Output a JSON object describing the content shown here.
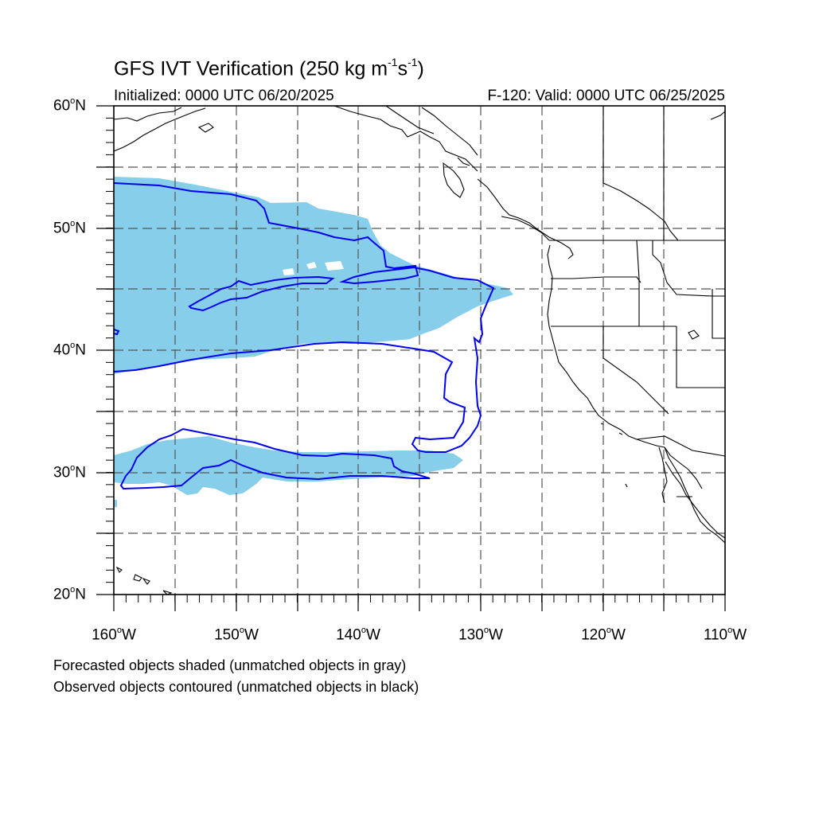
{
  "title": {
    "main": "GFS IVT Verification (250 kg m",
    "exp1": "-1",
    "mid": "s",
    "exp2": "-1",
    "end": ")"
  },
  "initialized": "Initialized: 0000 UTC 06/20/2025",
  "valid": "F-120: Valid: 0000 UTC 06/25/2025",
  "lat_labels": [
    {
      "value": "60",
      "unit": "o",
      "dir": "N"
    },
    {
      "value": "50",
      "unit": "o",
      "dir": "N"
    },
    {
      "value": "40",
      "unit": "o",
      "dir": "N"
    },
    {
      "value": "30",
      "unit": "o",
      "dir": "N"
    },
    {
      "value": "20",
      "unit": "o",
      "dir": "N"
    }
  ],
  "lon_labels": [
    {
      "value": "160",
      "unit": "o",
      "dir": "W"
    },
    {
      "value": "150",
      "unit": "o",
      "dir": "W"
    },
    {
      "value": "140",
      "unit": "o",
      "dir": "W"
    },
    {
      "value": "130",
      "unit": "o",
      "dir": "W"
    },
    {
      "value": "120",
      "unit": "o",
      "dir": "W"
    },
    {
      "value": "110",
      "unit": "o",
      "dir": "W"
    }
  ],
  "notes": [
    "Forecasted objects shaded (unmatched objects in gray)",
    "Observed objects contoured (unmatched objects in black)"
  ],
  "map_extent": {
    "lon_min": -160,
    "lon_max": -110,
    "lat_min": 20,
    "lat_max": 60
  },
  "colors": {
    "forecast_fill": "#87ceeb",
    "observed_contour": "#0000ee",
    "coastline": "#000000",
    "grid": "#555555"
  }
}
